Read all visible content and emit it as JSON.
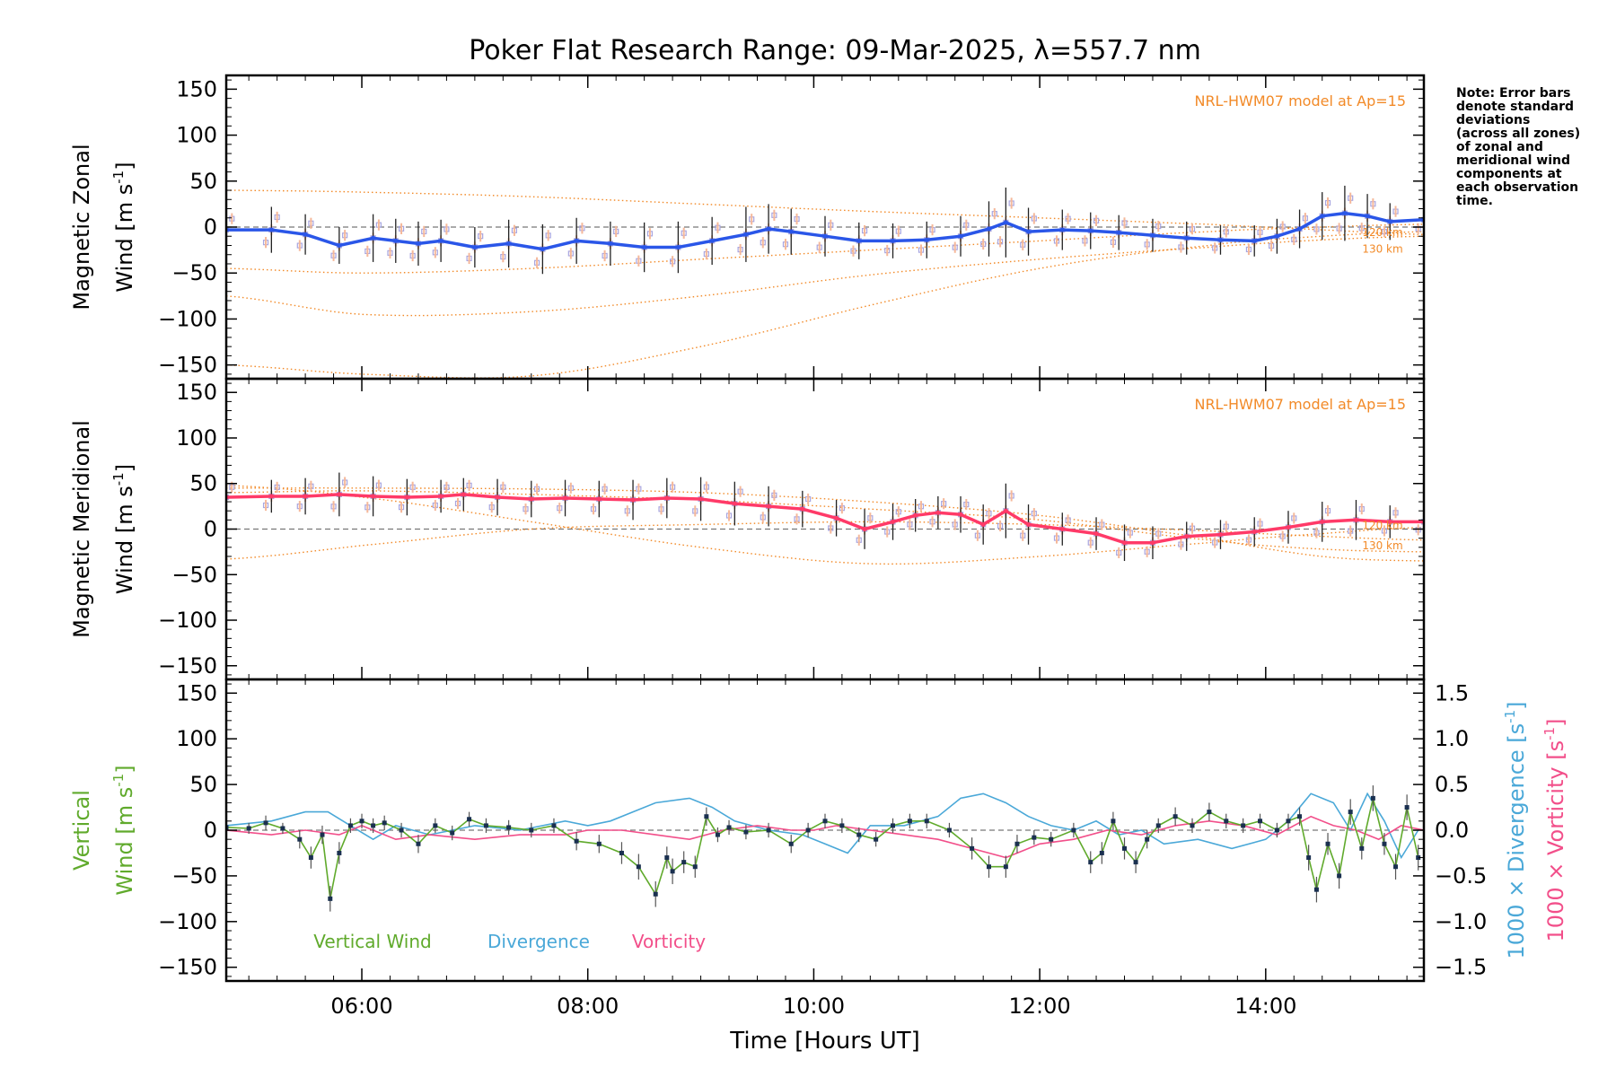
{
  "title": "Poker Flat Research Range: 09-Mar-2025, λ=557.7 nm",
  "note": [
    "Note: Error bars",
    "denote standard",
    "deviations",
    "(across all zones)",
    "of zonal and",
    "meridional wind",
    "components at",
    "each observation",
    "time."
  ],
  "colors": {
    "zonal": "#2a56e8",
    "meridional": "#ff3a68",
    "vertical": "#60aa2c",
    "divergence": "#4aa8d8",
    "vorticity": "#f24f8a",
    "model": "#f28a28",
    "zone_markers": "#a8a6e0",
    "zone_error_bars": "#f5b89a"
  },
  "chart_data": [
    {
      "type": "line",
      "name": "zonal",
      "ylabel_line1": "Magnetic Zonal",
      "ylabel_line2": "Wind [m s",
      "ylabel_sup": "-1",
      "ylabel_tail": "]",
      "model_label": "NRL-HWM07 model at Ap=15",
      "model_altitude_labels": [
        "120 km",
        "130 km"
      ],
      "xlim": [
        4.8,
        15.4
      ],
      "ylim": [
        -165,
        165
      ],
      "yticks": [
        150,
        100,
        50,
        0,
        -50,
        -100,
        -150
      ],
      "yticklabels": [
        "150",
        "100",
        "50",
        "0",
        "−50",
        "−100",
        "−150"
      ],
      "x": [
        4.8,
        5.2,
        5.5,
        5.8,
        6.1,
        6.3,
        6.5,
        6.7,
        7.0,
        7.3,
        7.6,
        7.9,
        8.2,
        8.5,
        8.8,
        9.1,
        9.4,
        9.6,
        9.8,
        10.1,
        10.4,
        10.7,
        11.0,
        11.3,
        11.55,
        11.7,
        11.9,
        12.2,
        12.45,
        12.7,
        13.0,
        13.3,
        13.6,
        13.9,
        14.1,
        14.3,
        14.5,
        14.7,
        14.9,
        15.1,
        15.4
      ],
      "y": [
        -3,
        -3,
        -8,
        -20,
        -12,
        -15,
        -18,
        -15,
        -22,
        -18,
        -24,
        -15,
        -18,
        -22,
        -22,
        -15,
        -8,
        -2,
        -5,
        -10,
        -15,
        -15,
        -14,
        -10,
        -2,
        5,
        -5,
        -3,
        -4,
        -6,
        -9,
        -12,
        -14,
        -15,
        -10,
        -2,
        12,
        15,
        12,
        6,
        8
      ],
      "err": [
        22,
        25,
        22,
        20,
        26,
        24,
        24,
        23,
        22,
        26,
        27,
        25,
        24,
        27,
        28,
        26,
        30,
        27,
        25,
        22,
        20,
        19,
        20,
        22,
        30,
        38,
        26,
        22,
        20,
        19,
        18,
        18,
        16,
        17,
        19,
        21,
        26,
        30,
        24,
        20,
        18
      ],
      "model_curves": [
        {
          "x": [
            4.8,
            6.0,
            7.5,
            9.0,
            10.5,
            12.0,
            13.5,
            14.5,
            15.4
          ],
          "y": [
            40,
            38,
            33,
            25,
            17,
            10,
            3,
            -3,
            -8
          ]
        },
        {
          "x": [
            4.8,
            6.0,
            7.5,
            9.0,
            10.5,
            12.0,
            13.5,
            14.5,
            15.4
          ],
          "y": [
            -75,
            -95,
            -92,
            -75,
            -52,
            -35,
            -22,
            -14,
            -10
          ]
        },
        {
          "x": [
            4.8,
            6.0,
            7.5,
            9.0,
            10.5,
            12.0,
            13.5,
            14.5,
            15.4
          ],
          "y": [
            -150,
            -160,
            -162,
            -130,
            -85,
            -45,
            -20,
            -10,
            -5
          ]
        },
        {
          "x": [
            4.8,
            6.0,
            7.5,
            9.0,
            10.5,
            12.0,
            13.5,
            14.5,
            15.4
          ],
          "y": [
            -45,
            -50,
            -45,
            -35,
            -25,
            -15,
            -5,
            0,
            3
          ]
        }
      ]
    },
    {
      "type": "line",
      "name": "meridional",
      "ylabel_line1": "Magnetic Meridional",
      "ylabel_line2": "Wind [m s",
      "ylabel_sup": "-1",
      "ylabel_tail": "]",
      "model_label": "NRL-HWM07 model at Ap=15",
      "model_altitude_labels": [
        "120 km",
        "130 km"
      ],
      "xlim": [
        4.8,
        15.4
      ],
      "ylim": [
        -165,
        165
      ],
      "yticks": [
        150,
        100,
        50,
        0,
        -50,
        -100,
        -150
      ],
      "yticklabels": [
        "150",
        "100",
        "50",
        "0",
        "−50",
        "−100",
        "−150"
      ],
      "x": [
        4.8,
        5.2,
        5.5,
        5.8,
        6.1,
        6.4,
        6.7,
        6.9,
        7.2,
        7.5,
        7.8,
        8.1,
        8.4,
        8.7,
        9.0,
        9.3,
        9.6,
        9.9,
        10.2,
        10.45,
        10.7,
        10.9,
        11.1,
        11.3,
        11.5,
        11.7,
        11.9,
        12.2,
        12.5,
        12.75,
        13.0,
        13.3,
        13.6,
        13.9,
        14.2,
        14.5,
        14.8,
        15.1,
        15.4
      ],
      "y": [
        35,
        36,
        36,
        38,
        36,
        35,
        36,
        38,
        35,
        33,
        34,
        33,
        32,
        34,
        33,
        28,
        25,
        22,
        12,
        0,
        8,
        15,
        18,
        16,
        5,
        20,
        5,
        0,
        -5,
        -15,
        -15,
        -8,
        -6,
        -3,
        2,
        8,
        10,
        8,
        8
      ],
      "err": [
        20,
        18,
        20,
        24,
        22,
        20,
        18,
        18,
        20,
        20,
        20,
        20,
        22,
        22,
        24,
        24,
        22,
        20,
        20,
        22,
        20,
        18,
        18,
        20,
        22,
        30,
        22,
        18,
        18,
        20,
        18,
        16,
        16,
        16,
        18,
        22,
        22,
        18,
        16
      ],
      "model_curves": [
        {
          "x": [
            4.8,
            6.0,
            7.5,
            9.0,
            10.5,
            12.0,
            13.5,
            14.5,
            15.4
          ],
          "y": [
            -33,
            -18,
            0,
            5,
            8,
            5,
            -2,
            -8,
            -12
          ]
        },
        {
          "x": [
            4.8,
            6.0,
            7.5,
            9.0,
            10.5,
            12.0,
            13.5,
            14.5,
            15.4
          ],
          "y": [
            48,
            35,
            8,
            -20,
            -38,
            -30,
            -15,
            -5,
            2
          ]
        },
        {
          "x": [
            4.8,
            6.0,
            7.5,
            9.0,
            10.5,
            12.0,
            13.5,
            14.5,
            15.4
          ],
          "y": [
            45,
            45,
            44,
            40,
            30,
            15,
            -10,
            -30,
            -35
          ]
        },
        {
          "x": [
            4.8,
            6.0,
            7.5,
            9.0,
            10.5,
            12.0,
            13.5,
            14.5,
            15.4
          ],
          "y": [
            40,
            42,
            38,
            32,
            22,
            10,
            -12,
            -22,
            -25
          ]
        }
      ]
    },
    {
      "type": "line",
      "name": "vertical",
      "ylabel_line1": "Vertical",
      "ylabel_line2": "Wind [m s",
      "ylabel_sup": "-1",
      "ylabel_tail": "]",
      "xlabel": "Time [Hours UT]",
      "xlim": [
        4.8,
        15.4
      ],
      "ylim": [
        -165,
        165
      ],
      "xticks": [
        6,
        8,
        10,
        12,
        14
      ],
      "xticklabels": [
        "06:00",
        "08:00",
        "10:00",
        "12:00",
        "14:00"
      ],
      "yticks": [
        150,
        100,
        50,
        0,
        -50,
        -100,
        -150
      ],
      "yticklabels": [
        "150",
        "100",
        "50",
        "0",
        "−50",
        "−100",
        "−150"
      ],
      "right_axis": {
        "label_div": "1000 × Divergence [s",
        "label_vort": "1000 × Vorticity [s",
        "label_sup": "-1",
        "label_tail": "]",
        "ylim": [
          -1.65,
          1.65
        ],
        "yticks": [
          1.5,
          1.0,
          0.5,
          0.0,
          -0.5,
          -1.0,
          -1.5
        ],
        "yticklabels": [
          "1.5",
          "1.0",
          "0.5",
          "0.0",
          "−0.5",
          "−1.0",
          "−1.5"
        ]
      },
      "legend": [
        "Vertical Wind",
        "Divergence",
        "Vorticity"
      ],
      "series": [
        {
          "name": "Vertical Wind",
          "x": [
            4.8,
            5.0,
            5.15,
            5.3,
            5.45,
            5.55,
            5.65,
            5.72,
            5.8,
            5.9,
            6.0,
            6.1,
            6.2,
            6.35,
            6.5,
            6.65,
            6.8,
            6.95,
            7.1,
            7.3,
            7.5,
            7.7,
            7.9,
            8.1,
            8.3,
            8.45,
            8.6,
            8.7,
            8.75,
            8.85,
            8.95,
            9.05,
            9.15,
            9.25,
            9.4,
            9.6,
            9.8,
            9.95,
            10.1,
            10.25,
            10.4,
            10.55,
            10.7,
            10.85,
            11.0,
            11.2,
            11.4,
            11.55,
            11.7,
            11.8,
            11.95,
            12.1,
            12.3,
            12.45,
            12.55,
            12.65,
            12.75,
            12.85,
            12.95,
            13.05,
            13.2,
            13.35,
            13.5,
            13.65,
            13.8,
            13.95,
            14.1,
            14.2,
            14.3,
            14.38,
            14.45,
            14.55,
            14.65,
            14.75,
            14.85,
            14.95,
            15.05,
            15.15,
            15.25,
            15.35
          ],
          "y": [
            3,
            2,
            8,
            2,
            -10,
            -30,
            -5,
            -75,
            -25,
            5,
            10,
            5,
            8,
            0,
            -15,
            5,
            -3,
            12,
            5,
            3,
            0,
            5,
            -12,
            -15,
            -25,
            -40,
            -70,
            -30,
            -45,
            -35,
            -40,
            15,
            -5,
            3,
            -2,
            0,
            -15,
            0,
            10,
            5,
            -5,
            -10,
            5,
            10,
            10,
            0,
            -20,
            -40,
            -40,
            -15,
            -8,
            -10,
            0,
            -35,
            -25,
            10,
            -20,
            -35,
            -10,
            5,
            15,
            5,
            20,
            10,
            5,
            10,
            0,
            10,
            15,
            -30,
            -65,
            -15,
            -50,
            20,
            -20,
            35,
            -15,
            -40,
            25,
            -30
          ],
          "err": [
            5,
            6,
            8,
            6,
            10,
            12,
            10,
            14,
            12,
            8,
            8,
            8,
            8,
            8,
            10,
            8,
            8,
            8,
            8,
            8,
            8,
            8,
            10,
            10,
            12,
            14,
            14,
            12,
            14,
            12,
            12,
            10,
            8,
            8,
            8,
            8,
            10,
            8,
            8,
            8,
            8,
            8,
            8,
            8,
            8,
            8,
            12,
            12,
            12,
            10,
            8,
            8,
            8,
            12,
            12,
            10,
            12,
            12,
            10,
            8,
            10,
            8,
            10,
            8,
            8,
            8,
            8,
            8,
            10,
            14,
            14,
            12,
            14,
            14,
            12,
            14,
            12,
            14,
            14,
            14
          ]
        },
        {
          "name": "Divergence",
          "x": [
            4.8,
            5.2,
            5.5,
            5.7,
            5.9,
            6.1,
            6.3,
            6.6,
            7.0,
            7.4,
            7.8,
            8.0,
            8.2,
            8.4,
            8.6,
            8.9,
            9.1,
            9.3,
            9.6,
            9.9,
            10.1,
            10.3,
            10.5,
            10.8,
            11.1,
            11.3,
            11.5,
            11.7,
            11.9,
            12.1,
            12.3,
            12.5,
            12.7,
            12.9,
            13.1,
            13.4,
            13.7,
            14.0,
            14.2,
            14.4,
            14.6,
            14.75,
            14.9,
            15.05,
            15.2,
            15.35
          ],
          "y": [
            0.05,
            0.1,
            0.2,
            0.2,
            0.05,
            -0.1,
            0.05,
            -0.05,
            0.05,
            0.0,
            0.1,
            0.05,
            0.1,
            0.2,
            0.3,
            0.35,
            0.25,
            0.1,
            0.0,
            -0.05,
            -0.15,
            -0.25,
            0.05,
            0.05,
            0.15,
            0.35,
            0.4,
            0.3,
            0.15,
            0.05,
            0.0,
            0.1,
            -0.05,
            0.0,
            -0.15,
            -0.1,
            -0.2,
            -0.1,
            0.1,
            0.4,
            0.3,
            0.0,
            0.4,
            0.1,
            -0.3,
            0.0
          ],
          "err": []
        },
        {
          "name": "Vorticity",
          "x": [
            4.8,
            5.2,
            5.5,
            5.8,
            6.0,
            6.3,
            6.6,
            7.0,
            7.4,
            7.8,
            8.0,
            8.3,
            8.6,
            8.9,
            9.2,
            9.5,
            9.8,
            10.0,
            10.2,
            10.5,
            10.8,
            11.1,
            11.4,
            11.7,
            12.0,
            12.3,
            12.6,
            12.9,
            13.2,
            13.5,
            13.8,
            14.1,
            14.4,
            14.6,
            14.8,
            15.0,
            15.2,
            15.4
          ],
          "y": [
            0.0,
            -0.05,
            0.0,
            -0.05,
            0.05,
            -0.1,
            -0.05,
            -0.1,
            -0.05,
            -0.05,
            0.0,
            0.0,
            -0.05,
            -0.1,
            0.0,
            0.05,
            0.0,
            0.0,
            0.05,
            0.0,
            -0.05,
            -0.1,
            -0.2,
            -0.3,
            -0.15,
            -0.1,
            0.0,
            -0.05,
            0.05,
            0.1,
            0.05,
            -0.05,
            0.15,
            0.05,
            0.0,
            -0.1,
            0.05,
            0.0
          ],
          "err": []
        }
      ]
    }
  ]
}
